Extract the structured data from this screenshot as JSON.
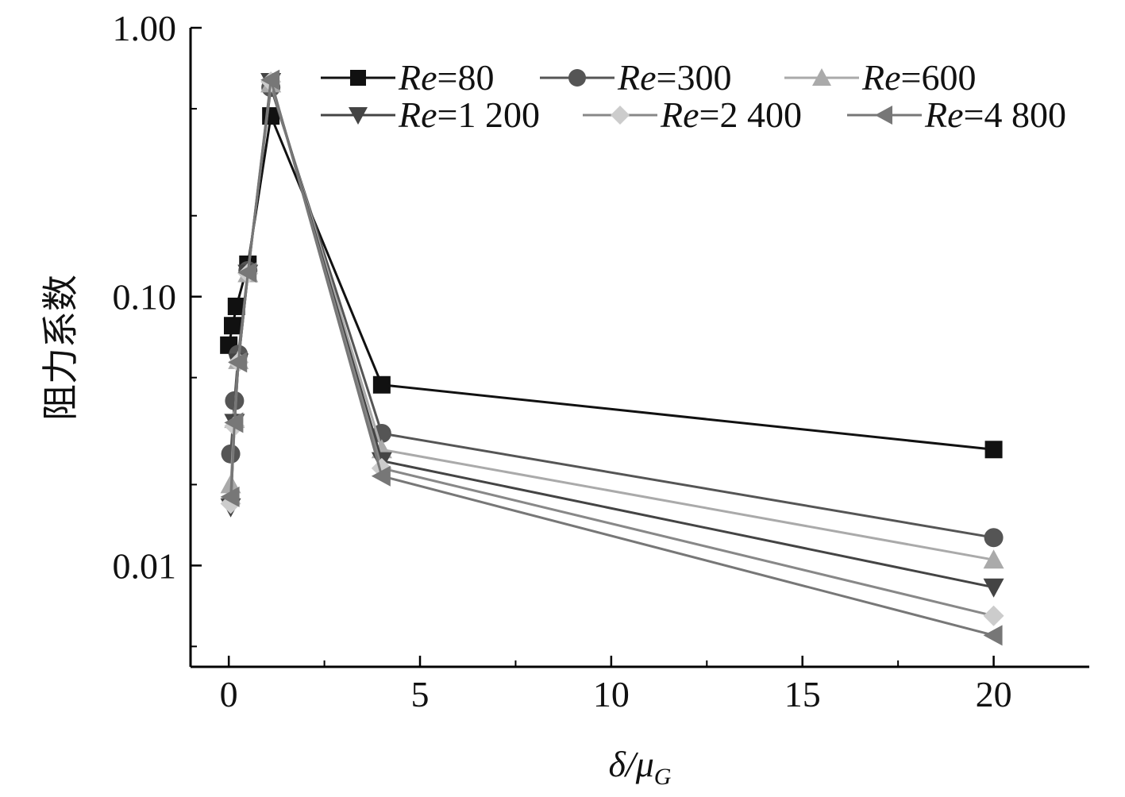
{
  "chart_data": {
    "type": "line",
    "title": "",
    "xlabel": "δ/μ",
    "xlabel_sub": "G",
    "ylabel": "阻力系数",
    "yscale": "log",
    "xlim": [
      -1,
      22.5
    ],
    "ylim": [
      0.0042,
      1.0
    ],
    "xticks": [
      0,
      5,
      10,
      15,
      20
    ],
    "yticks": [
      0.01,
      0.1,
      1.0
    ],
    "ytick_labels": [
      "0.01",
      "0.10",
      "1.00"
    ],
    "grid": false,
    "legend_position": "top-right",
    "series": [
      {
        "name": "80",
        "prefix": "Re",
        "color": "#111111",
        "marker": "square",
        "x": [
          0,
          0.1,
          0.2,
          0.5,
          1.1,
          4,
          20
        ],
        "y": [
          0.066,
          0.078,
          0.092,
          0.132,
          0.47,
          0.047,
          0.027
        ]
      },
      {
        "name": "300",
        "prefix": "Re",
        "color": "#555555",
        "marker": "circle",
        "x": [
          0.05,
          0.15,
          0.25,
          0.5,
          1.1,
          4,
          20
        ],
        "y": [
          0.026,
          0.041,
          0.061,
          0.125,
          0.6,
          0.031,
          0.0127
        ]
      },
      {
        "name": "600",
        "prefix": "Re",
        "color": "#aaaaaa",
        "marker": "triangle-up",
        "x": [
          0.05,
          0.15,
          0.25,
          0.5,
          1.1,
          4,
          20
        ],
        "y": [
          0.02,
          0.035,
          0.058,
          0.122,
          0.62,
          0.027,
          0.0105
        ]
      },
      {
        "name": "1 200",
        "prefix": "Re",
        "color": "#444444",
        "marker": "triangle-down",
        "x": [
          0.05,
          0.15,
          0.25,
          0.5,
          1.1,
          4,
          20
        ],
        "y": [
          0.0165,
          0.034,
          0.057,
          0.122,
          0.63,
          0.0245,
          0.0083
        ]
      },
      {
        "name": "2 400",
        "prefix": "Re",
        "color": "#cccccc",
        "marker": "diamond",
        "x": [
          0.05,
          0.15,
          0.25,
          0.5,
          1.1,
          4,
          20
        ],
        "y": [
          0.017,
          0.033,
          0.057,
          0.122,
          0.63,
          0.023,
          0.0065
        ]
      },
      {
        "name": "4 800",
        "prefix": "Re",
        "color": "#777777",
        "marker": "triangle-left",
        "x": [
          0.05,
          0.15,
          0.25,
          0.5,
          1.1,
          4,
          20
        ],
        "y": [
          0.018,
          0.034,
          0.057,
          0.123,
          0.64,
          0.0215,
          0.0055
        ]
      }
    ]
  }
}
